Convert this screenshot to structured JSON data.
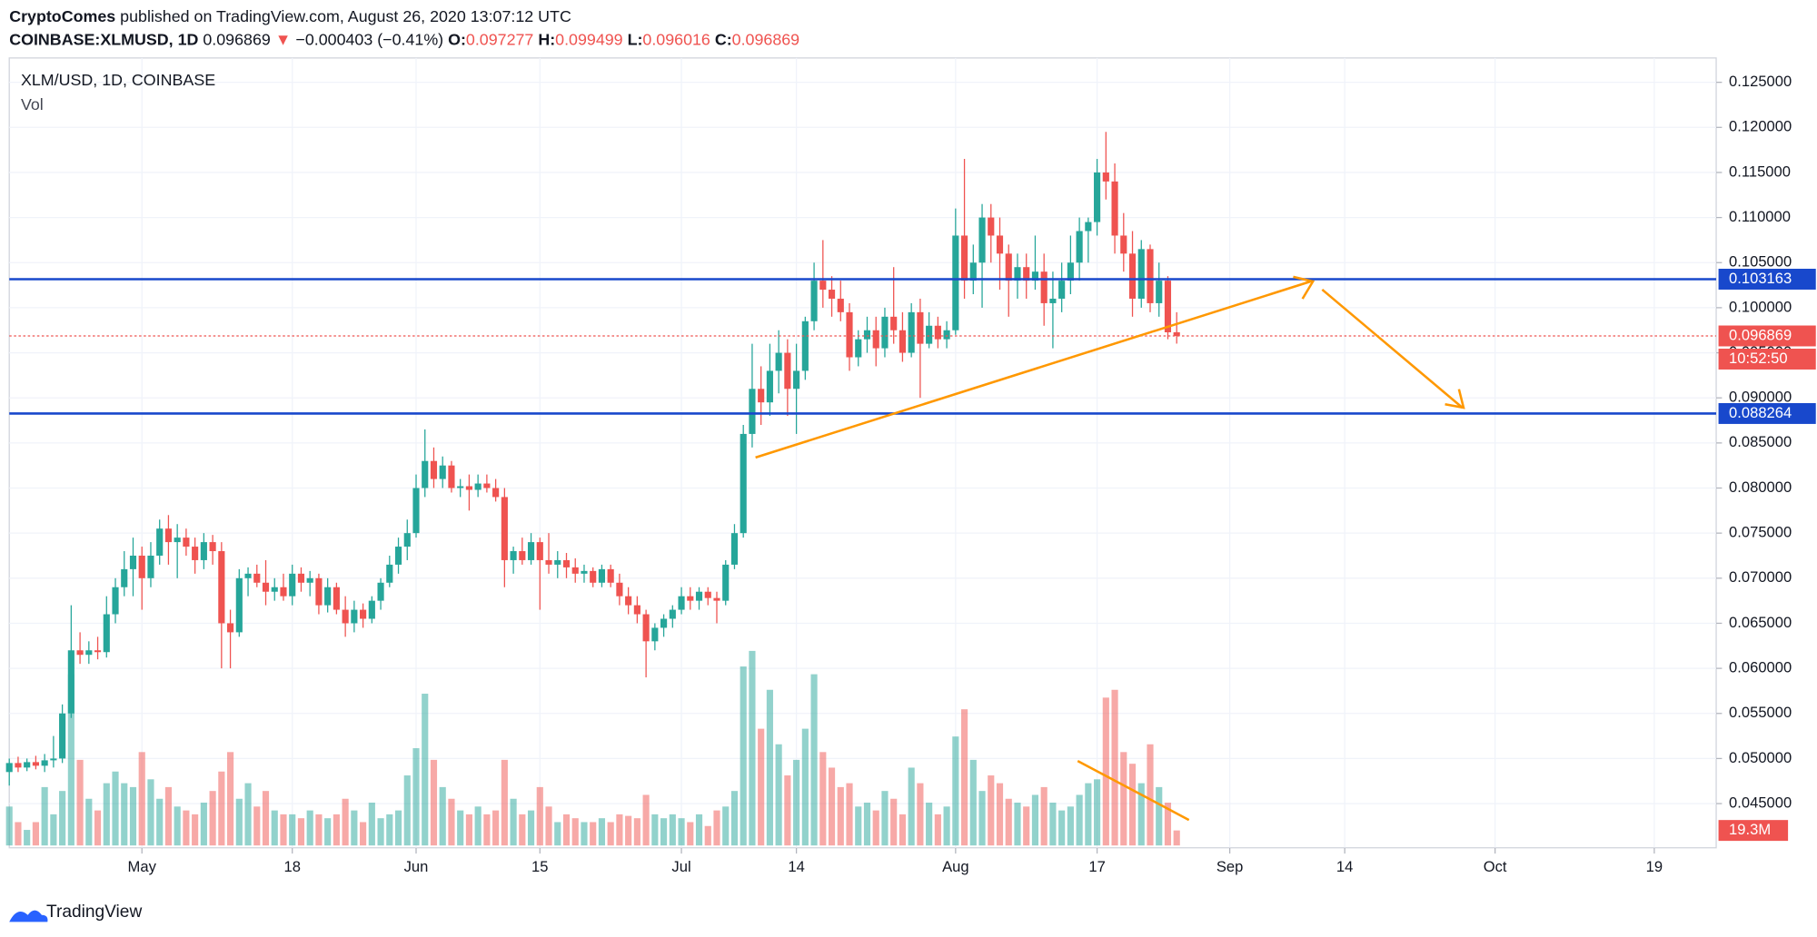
{
  "header": {
    "publisher": "CryptoComes",
    "published": "published on TradingView.com, August 26, 2020 13:07:12 UTC",
    "symbol": "COINBASE:XLMUSD, 1D",
    "last": "0.096869",
    "arrow": "▼",
    "change": "−0.000403 (−0.41%)",
    "o_label": "O:",
    "o": "0.097277",
    "h_label": "H:",
    "h": "0.099499",
    "l_label": "L:",
    "l": "0.096016",
    "c_label": "C:",
    "c": "0.096869"
  },
  "footer": {
    "brand": "TradingView"
  },
  "chart_data": {
    "type": "candlestick",
    "title": "XLM/USD, 1D, COINBASE",
    "up_color": "#26a69a",
    "down_color": "#ef5350",
    "grid": true,
    "x": [
      "Apr 16",
      "Apr 17",
      "Apr 18",
      "Apr 19",
      "Apr 20",
      "Apr 21",
      "Apr 22",
      "Apr 23",
      "Apr 24",
      "Apr 25",
      "Apr 26",
      "Apr 27",
      "Apr 28",
      "Apr 29",
      "Apr 30",
      "May 1",
      "May 2",
      "May 3",
      "May 4",
      "May 5",
      "May 6",
      "May 7",
      "May 8",
      "May 9",
      "May 10",
      "May 11",
      "May 12",
      "May 13",
      "May 14",
      "May 15",
      "May 16",
      "May 17",
      "May 18",
      "May 19",
      "May 20",
      "May 21",
      "May 22",
      "May 23",
      "May 24",
      "May 25",
      "May 26",
      "May 27",
      "May 28",
      "May 29",
      "May 30",
      "May 31",
      "Jun 1",
      "Jun 2",
      "Jun 3",
      "Jun 4",
      "Jun 5",
      "Jun 6",
      "Jun 7",
      "Jun 8",
      "Jun 9",
      "Jun 10",
      "Jun 11",
      "Jun 12",
      "Jun 13",
      "Jun 14",
      "Jun 15",
      "Jun 16",
      "Jun 17",
      "Jun 18",
      "Jun 19",
      "Jun 20",
      "Jun 21",
      "Jun 22",
      "Jun 23",
      "Jun 24",
      "Jun 25",
      "Jun 26",
      "Jun 27",
      "Jun 28",
      "Jun 29",
      "Jun 30",
      "Jul 1",
      "Jul 2",
      "Jul 3",
      "Jul 4",
      "Jul 5",
      "Jul 6",
      "Jul 7",
      "Jul 8",
      "Jul 9",
      "Jul 10",
      "Jul 11",
      "Jul 12",
      "Jul 13",
      "Jul 14",
      "Jul 15",
      "Jul 16",
      "Jul 17",
      "Jul 18",
      "Jul 19",
      "Jul 20",
      "Jul 21",
      "Jul 22",
      "Jul 23",
      "Jul 24",
      "Jul 25",
      "Jul 26",
      "Jul 27",
      "Jul 28",
      "Jul 29",
      "Jul 30",
      "Jul 31",
      "Aug 1",
      "Aug 2",
      "Aug 3",
      "Aug 4",
      "Aug 5",
      "Aug 6",
      "Aug 7",
      "Aug 8",
      "Aug 9",
      "Aug 10",
      "Aug 11",
      "Aug 12",
      "Aug 13",
      "Aug 14",
      "Aug 15",
      "Aug 16",
      "Aug 17",
      "Aug 18",
      "Aug 19",
      "Aug 20",
      "Aug 21",
      "Aug 22",
      "Aug 23",
      "Aug 24",
      "Aug 25",
      "Aug 26"
    ],
    "ohlc": [
      [
        0.0485,
        0.05,
        0.047,
        0.0495
      ],
      [
        0.0495,
        0.0502,
        0.0485,
        0.049
      ],
      [
        0.049,
        0.05,
        0.0486,
        0.0496
      ],
      [
        0.0496,
        0.0503,
        0.0488,
        0.0492
      ],
      [
        0.0492,
        0.0505,
        0.0485,
        0.0498
      ],
      [
        0.0498,
        0.0525,
        0.049,
        0.05
      ],
      [
        0.05,
        0.056,
        0.0495,
        0.055
      ],
      [
        0.055,
        0.067,
        0.0545,
        0.062
      ],
      [
        0.062,
        0.064,
        0.0605,
        0.0615
      ],
      [
        0.0615,
        0.063,
        0.0605,
        0.062
      ],
      [
        0.062,
        0.0635,
        0.061,
        0.0618
      ],
      [
        0.0618,
        0.068,
        0.0612,
        0.066
      ],
      [
        0.066,
        0.07,
        0.065,
        0.069
      ],
      [
        0.069,
        0.073,
        0.068,
        0.071
      ],
      [
        0.071,
        0.0745,
        0.068,
        0.0725
      ],
      [
        0.0725,
        0.0735,
        0.0665,
        0.07
      ],
      [
        0.07,
        0.074,
        0.069,
        0.0725
      ],
      [
        0.0725,
        0.0765,
        0.0715,
        0.0755
      ],
      [
        0.0755,
        0.077,
        0.0715,
        0.074
      ],
      [
        0.074,
        0.076,
        0.07,
        0.0745
      ],
      [
        0.0745,
        0.0755,
        0.0725,
        0.0735
      ],
      [
        0.0735,
        0.0745,
        0.0705,
        0.072
      ],
      [
        0.072,
        0.075,
        0.071,
        0.074
      ],
      [
        0.074,
        0.0748,
        0.0715,
        0.073
      ],
      [
        0.073,
        0.074,
        0.06,
        0.065
      ],
      [
        0.065,
        0.0665,
        0.06,
        0.064
      ],
      [
        0.064,
        0.071,
        0.0635,
        0.07
      ],
      [
        0.07,
        0.0712,
        0.068,
        0.0705
      ],
      [
        0.0705,
        0.0715,
        0.069,
        0.0695
      ],
      [
        0.0695,
        0.072,
        0.067,
        0.0685
      ],
      [
        0.0685,
        0.07,
        0.0675,
        0.069
      ],
      [
        0.069,
        0.0705,
        0.0675,
        0.068
      ],
      [
        0.068,
        0.0715,
        0.067,
        0.0705
      ],
      [
        0.0705,
        0.0712,
        0.0685,
        0.0695
      ],
      [
        0.0695,
        0.0708,
        0.068,
        0.07
      ],
      [
        0.07,
        0.0705,
        0.066,
        0.067
      ],
      [
        0.067,
        0.07,
        0.0662,
        0.069
      ],
      [
        0.069,
        0.0695,
        0.066,
        0.0665
      ],
      [
        0.0665,
        0.068,
        0.0635,
        0.065
      ],
      [
        0.065,
        0.0675,
        0.064,
        0.0665
      ],
      [
        0.0665,
        0.0672,
        0.0645,
        0.0655
      ],
      [
        0.0655,
        0.068,
        0.065,
        0.0675
      ],
      [
        0.0675,
        0.07,
        0.0665,
        0.0695
      ],
      [
        0.0695,
        0.0725,
        0.069,
        0.0715
      ],
      [
        0.0715,
        0.0745,
        0.0705,
        0.0735
      ],
      [
        0.0735,
        0.0765,
        0.072,
        0.075
      ],
      [
        0.075,
        0.0815,
        0.0745,
        0.08
      ],
      [
        0.08,
        0.0865,
        0.079,
        0.083
      ],
      [
        0.083,
        0.0845,
        0.08,
        0.081
      ],
      [
        0.081,
        0.0835,
        0.08,
        0.0825
      ],
      [
        0.0825,
        0.083,
        0.0795,
        0.08
      ],
      [
        0.08,
        0.081,
        0.079,
        0.0802
      ],
      [
        0.0802,
        0.0815,
        0.0775,
        0.0798
      ],
      [
        0.0798,
        0.0815,
        0.079,
        0.0805
      ],
      [
        0.0805,
        0.0815,
        0.0795,
        0.08
      ],
      [
        0.08,
        0.081,
        0.0785,
        0.079
      ],
      [
        0.079,
        0.08,
        0.069,
        0.072
      ],
      [
        0.072,
        0.0735,
        0.0705,
        0.073
      ],
      [
        0.073,
        0.0745,
        0.0715,
        0.072
      ],
      [
        0.072,
        0.075,
        0.0715,
        0.074
      ],
      [
        0.074,
        0.0745,
        0.0665,
        0.072
      ],
      [
        0.072,
        0.075,
        0.0705,
        0.0715
      ],
      [
        0.0715,
        0.073,
        0.07,
        0.072
      ],
      [
        0.072,
        0.0728,
        0.07,
        0.0712
      ],
      [
        0.0712,
        0.0722,
        0.0695,
        0.0705
      ],
      [
        0.0705,
        0.0715,
        0.0695,
        0.0708
      ],
      [
        0.0708,
        0.0712,
        0.069,
        0.0695
      ],
      [
        0.0695,
        0.0715,
        0.069,
        0.071
      ],
      [
        0.071,
        0.0715,
        0.069,
        0.0695
      ],
      [
        0.0695,
        0.0705,
        0.067,
        0.068
      ],
      [
        0.068,
        0.069,
        0.066,
        0.067
      ],
      [
        0.067,
        0.068,
        0.065,
        0.066
      ],
      [
        0.066,
        0.0665,
        0.059,
        0.063
      ],
      [
        0.063,
        0.065,
        0.062,
        0.0645
      ],
      [
        0.0645,
        0.066,
        0.0635,
        0.0655
      ],
      [
        0.0655,
        0.067,
        0.0645,
        0.0665
      ],
      [
        0.0665,
        0.069,
        0.066,
        0.068
      ],
      [
        0.068,
        0.069,
        0.0665,
        0.0675
      ],
      [
        0.0675,
        0.069,
        0.0665,
        0.0685
      ],
      [
        0.0685,
        0.069,
        0.067,
        0.0678
      ],
      [
        0.0678,
        0.0685,
        0.065,
        0.0675
      ],
      [
        0.0675,
        0.072,
        0.067,
        0.0715
      ],
      [
        0.0715,
        0.076,
        0.071,
        0.075
      ],
      [
        0.075,
        0.087,
        0.0745,
        0.086
      ],
      [
        0.086,
        0.096,
        0.0845,
        0.091
      ],
      [
        0.091,
        0.0935,
        0.087,
        0.0895
      ],
      [
        0.0895,
        0.096,
        0.088,
        0.093
      ],
      [
        0.093,
        0.0975,
        0.0905,
        0.095
      ],
      [
        0.095,
        0.0965,
        0.088,
        0.091
      ],
      [
        0.091,
        0.096,
        0.086,
        0.093
      ],
      [
        0.093,
        0.099,
        0.092,
        0.0985
      ],
      [
        0.0985,
        0.105,
        0.0975,
        0.103
      ],
      [
        0.103,
        0.1075,
        0.1,
        0.102
      ],
      [
        0.102,
        0.1035,
        0.099,
        0.101
      ],
      [
        0.101,
        0.103,
        0.0985,
        0.0995
      ],
      [
        0.0995,
        0.1005,
        0.093,
        0.0945
      ],
      [
        0.0945,
        0.0975,
        0.0935,
        0.0965
      ],
      [
        0.0965,
        0.099,
        0.095,
        0.0975
      ],
      [
        0.0975,
        0.099,
        0.0935,
        0.0955
      ],
      [
        0.0955,
        0.1,
        0.0945,
        0.099
      ],
      [
        0.099,
        0.1045,
        0.096,
        0.0975
      ],
      [
        0.0975,
        0.0995,
        0.094,
        0.095
      ],
      [
        0.095,
        0.1005,
        0.0945,
        0.0995
      ],
      [
        0.0995,
        0.101,
        0.09,
        0.096
      ],
      [
        0.096,
        0.0995,
        0.0955,
        0.098
      ],
      [
        0.098,
        0.099,
        0.0955,
        0.0965
      ],
      [
        0.0965,
        0.0985,
        0.0955,
        0.0975
      ],
      [
        0.0975,
        0.111,
        0.097,
        0.108
      ],
      [
        0.108,
        0.1165,
        0.101,
        0.103
      ],
      [
        0.103,
        0.107,
        0.1015,
        0.105
      ],
      [
        0.105,
        0.1115,
        0.1,
        0.11
      ],
      [
        0.11,
        0.1115,
        0.105,
        0.108
      ],
      [
        0.108,
        0.11,
        0.102,
        0.106
      ],
      [
        0.106,
        0.107,
        0.099,
        0.103
      ],
      [
        0.103,
        0.106,
        0.101,
        0.1045
      ],
      [
        0.1045,
        0.106,
        0.101,
        0.103
      ],
      [
        0.103,
        0.108,
        0.102,
        0.104
      ],
      [
        0.104,
        0.106,
        0.098,
        0.1005
      ],
      [
        0.1005,
        0.104,
        0.0955,
        0.101
      ],
      [
        0.101,
        0.105,
        0.0995,
        0.103
      ],
      [
        0.103,
        0.108,
        0.1015,
        0.105
      ],
      [
        0.105,
        0.11,
        0.103,
        0.1085
      ],
      [
        0.1085,
        0.11,
        0.105,
        0.1095
      ],
      [
        0.1095,
        0.1165,
        0.108,
        0.115
      ],
      [
        0.115,
        0.1195,
        0.112,
        0.114
      ],
      [
        0.114,
        0.116,
        0.106,
        0.108
      ],
      [
        0.108,
        0.1105,
        0.104,
        0.106
      ],
      [
        0.106,
        0.1085,
        0.099,
        0.101
      ],
      [
        0.101,
        0.1075,
        0.1,
        0.1065
      ],
      [
        0.1065,
        0.107,
        0.0995,
        0.1005
      ],
      [
        0.1005,
        0.105,
        0.099,
        0.103
      ],
      [
        0.103,
        0.1035,
        0.0965,
        0.097272
      ],
      [
        0.097277,
        0.099499,
        0.096016,
        0.096869
      ]
    ],
    "volume": {
      "name": "Vol",
      "values": [
        50,
        30,
        20,
        30,
        75,
        40,
        70,
        220,
        110,
        60,
        45,
        80,
        95,
        80,
        75,
        120,
        85,
        60,
        75,
        50,
        45,
        40,
        55,
        70,
        95,
        120,
        60,
        80,
        50,
        70,
        45,
        40,
        40,
        35,
        45,
        40,
        35,
        40,
        60,
        45,
        30,
        55,
        35,
        40,
        45,
        90,
        125,
        195,
        110,
        75,
        60,
        45,
        40,
        50,
        40,
        45,
        110,
        60,
        40,
        45,
        75,
        50,
        30,
        40,
        35,
        30,
        30,
        35,
        30,
        40,
        38,
        35,
        65,
        40,
        35,
        40,
        35,
        30,
        40,
        25,
        45,
        50,
        70,
        230,
        250,
        150,
        200,
        130,
        90,
        110,
        150,
        220,
        120,
        100,
        75,
        80,
        50,
        55,
        45,
        70,
        60,
        40,
        100,
        80,
        55,
        40,
        50,
        140,
        175,
        110,
        70,
        90,
        80,
        60,
        55,
        50,
        65,
        75,
        55,
        45,
        50,
        65,
        80,
        85,
        190,
        200,
        120,
        105,
        80,
        130,
        75,
        55,
        19.3
      ]
    },
    "last_volume": {
      "value": 19.3,
      "label": "19.3M"
    },
    "last_price": 0.096869,
    "countdown": "10:52:50",
    "hlines": [
      {
        "value": 0.103163,
        "color": "#1848cc"
      },
      {
        "value": 0.088264,
        "color": "#1848cc"
      }
    ],
    "xlim": [
      "Apr 16",
      "Oct 26"
    ],
    "xticks": [
      {
        "value": "May 1",
        "label": "May"
      },
      {
        "value": "May 18",
        "label": "18"
      },
      {
        "value": "Jun 1",
        "label": "Jun"
      },
      {
        "value": "Jun 15",
        "label": "15"
      },
      {
        "value": "Jul 1",
        "label": "Jul"
      },
      {
        "value": "Jul 14",
        "label": "14"
      },
      {
        "value": "Aug 1",
        "label": "Aug"
      },
      {
        "value": "Aug 17",
        "label": "17"
      },
      {
        "value": "Sep 1",
        "label": "Sep"
      },
      {
        "value": "Sep 14",
        "label": "14"
      },
      {
        "value": "Oct 1",
        "label": "Oct"
      },
      {
        "value": "Oct 19",
        "label": "19"
      }
    ],
    "ylim": [
      0.0401,
      0.1277
    ],
    "yticks": [
      {
        "value": 0.045,
        "label": "0.045000"
      },
      {
        "value": 0.05,
        "label": "0.050000"
      },
      {
        "value": 0.055,
        "label": "0.055000"
      },
      {
        "value": 0.06,
        "label": "0.060000"
      },
      {
        "value": 0.065,
        "label": "0.065000"
      },
      {
        "value": 0.07,
        "label": "0.070000"
      },
      {
        "value": 0.075,
        "label": "0.075000"
      },
      {
        "value": 0.08,
        "label": "0.080000"
      },
      {
        "value": 0.085,
        "label": "0.085000"
      },
      {
        "value": 0.09,
        "label": "0.090000"
      },
      {
        "value": 0.095,
        "label": "0.095000"
      },
      {
        "value": 0.1,
        "label": "0.100000"
      },
      {
        "value": 0.105,
        "label": "0.105000"
      },
      {
        "value": 0.11,
        "label": "0.110000"
      },
      {
        "value": 0.115,
        "label": "0.115000"
      },
      {
        "value": 0.12,
        "label": "0.120000"
      },
      {
        "value": 0.125,
        "label": "0.125000"
      }
    ]
  }
}
